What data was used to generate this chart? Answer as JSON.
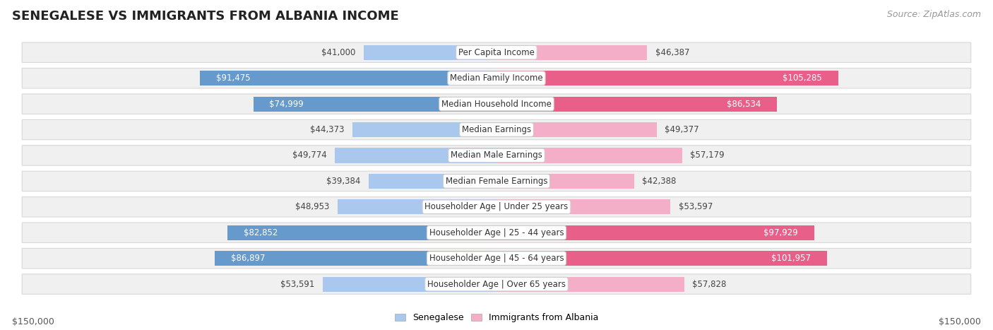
{
  "title": "SENEGALESE VS IMMIGRANTS FROM ALBANIA INCOME",
  "source": "Source: ZipAtlas.com",
  "categories": [
    "Per Capita Income",
    "Median Family Income",
    "Median Household Income",
    "Median Earnings",
    "Median Male Earnings",
    "Median Female Earnings",
    "Householder Age | Under 25 years",
    "Householder Age | 25 - 44 years",
    "Householder Age | 45 - 64 years",
    "Householder Age | Over 65 years"
  ],
  "senegalese_values": [
    41000,
    91475,
    74999,
    44373,
    49774,
    39384,
    48953,
    82852,
    86897,
    53591
  ],
  "albania_values": [
    46387,
    105285,
    86534,
    49377,
    57179,
    42388,
    53597,
    97929,
    101957,
    57828
  ],
  "senegalese_labels": [
    "$41,000",
    "$91,475",
    "$74,999",
    "$44,373",
    "$49,774",
    "$39,384",
    "$48,953",
    "$82,852",
    "$86,897",
    "$53,591"
  ],
  "albania_labels": [
    "$46,387",
    "$105,285",
    "$86,534",
    "$49,377",
    "$57,179",
    "$42,388",
    "$53,597",
    "$97,929",
    "$101,957",
    "$57,828"
  ],
  "senegalese_label_inside": [
    false,
    true,
    true,
    false,
    false,
    false,
    false,
    true,
    true,
    false
  ],
  "albania_label_inside": [
    false,
    true,
    true,
    false,
    false,
    false,
    false,
    true,
    true,
    false
  ],
  "max_value": 150000,
  "color_senegalese_light": "#aac8ee",
  "color_senegalese_dark": "#6699cc",
  "color_albania_light": "#f4aec8",
  "color_albania_dark": "#e8608a",
  "row_bg": "#f0f0f0",
  "row_edge": "#d8d8d8",
  "axis_label_left": "$150,000",
  "axis_label_right": "$150,000",
  "legend_senegalese": "Senegalese",
  "legend_albania": "Immigrants from Albania",
  "title_fontsize": 13,
  "source_fontsize": 9,
  "category_fontsize": 8.5,
  "value_fontsize": 8.5,
  "inside_label_threshold": 65000
}
